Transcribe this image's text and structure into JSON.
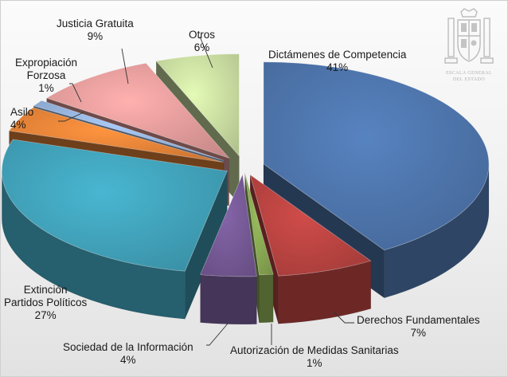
{
  "chart_data": {
    "type": "pie",
    "title": "",
    "slices": [
      {
        "name": "Dictámenes de Competencia",
        "value": 41,
        "label": "41%",
        "color": "#4a6fa3"
      },
      {
        "name": "Derechos Fundamentales",
        "value": 7,
        "label": "7%",
        "color": "#b0403e"
      },
      {
        "name": "Autorización de Medidas Sanitarias",
        "value": 1,
        "label": "1%",
        "color": "#82a04e"
      },
      {
        "name": "Sociedad de la Información",
        "value": 4,
        "label": "4%",
        "color": "#70558e"
      },
      {
        "name": "Extinción Partidos Políticos",
        "value": 27,
        "label": "27%",
        "color": "#3e9ab1"
      },
      {
        "name": "Asilo",
        "value": 4,
        "label": "4%",
        "color": "#dc7d35"
      },
      {
        "name": "Expropiación Forzosa",
        "value": 1,
        "label": "1%",
        "color": "#8eabd3"
      },
      {
        "name": "Justicia Gratuita",
        "value": 9,
        "label": "9%",
        "color": "#d89594"
      },
      {
        "name": "Otros",
        "value": 6,
        "label": "6%",
        "color": "#c1d49a"
      }
    ],
    "labels": {
      "dictamenes": [
        "Dictámenes de Competencia",
        "41%"
      ],
      "derechos": [
        "Derechos Fundamentales",
        "7%"
      ],
      "autorizacion": [
        "Autorización de Medidas Sanitarias",
        "1%"
      ],
      "sociedad": [
        "Sociedad de la Información",
        "4%"
      ],
      "extincion": [
        "Extinción",
        "Partidos Políticos",
        "27%"
      ],
      "asilo": [
        "Asilo",
        "4%"
      ],
      "expropiacion": [
        "Expropiación",
        "Forzosa",
        "1%"
      ],
      "justicia": [
        "Justicia Gratuita",
        "9%"
      ],
      "otros": [
        "Otros",
        "6%"
      ]
    }
  },
  "logo": {
    "line1": "ESCALA GENERAL",
    "line2": "DEL ESTADO",
    "icon": "coat-of-arms-icon"
  }
}
